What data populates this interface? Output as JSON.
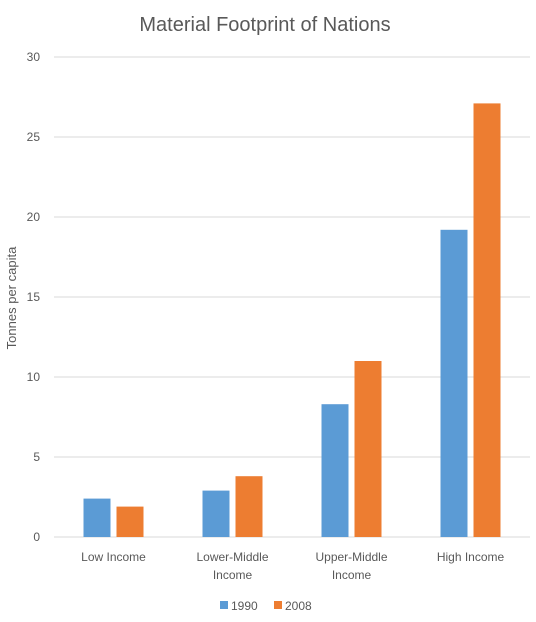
{
  "colors": {
    "series_1990": "#5B9BD5",
    "series_2008": "#ED7D31",
    "grid": "#D9D9D9",
    "text": "#595959"
  },
  "chart_data": {
    "type": "bar",
    "title": "Material Footprint of Nations",
    "ylabel": "Tonnes per capita",
    "xlabel": "",
    "ylim": [
      0,
      30
    ],
    "yticks": [
      0,
      5,
      10,
      15,
      20,
      25,
      30
    ],
    "categories": [
      [
        "Low Income"
      ],
      [
        "Lower-Middle",
        "Income"
      ],
      [
        "Upper-Middle",
        "Income"
      ],
      [
        "High Income"
      ]
    ],
    "series": [
      {
        "name": "1990",
        "values": [
          2.4,
          2.9,
          8.3,
          19.2
        ]
      },
      {
        "name": "2008",
        "values": [
          1.9,
          3.8,
          11.0,
          27.1
        ]
      }
    ],
    "grid": true,
    "legend": "bottom-center"
  }
}
